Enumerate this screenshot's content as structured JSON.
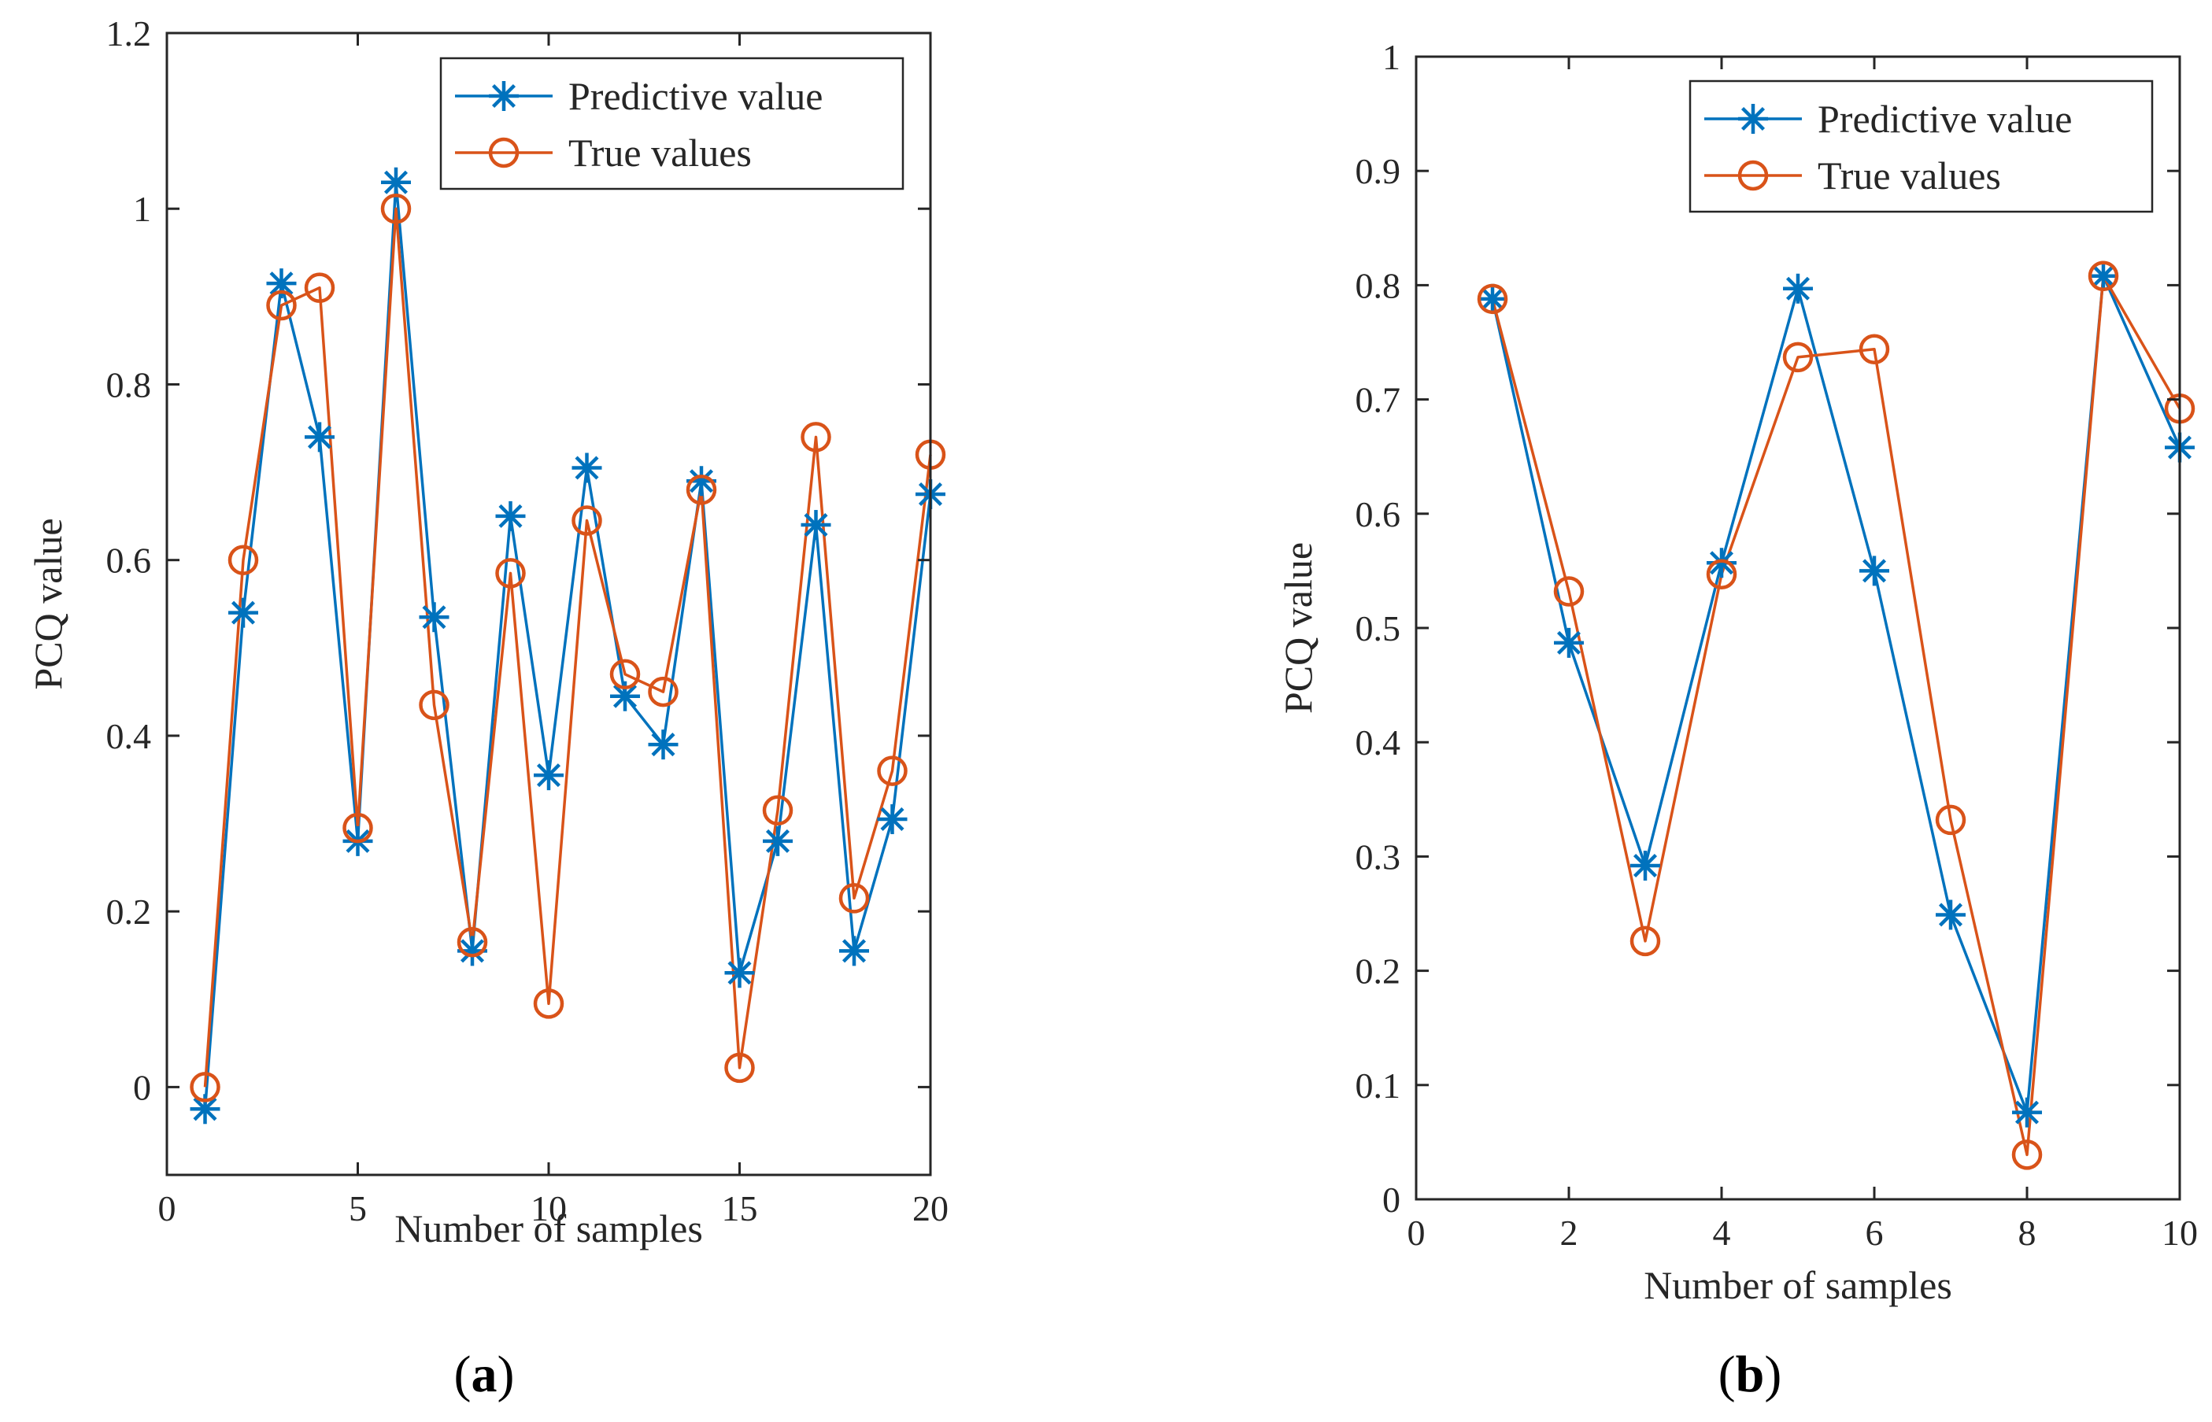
{
  "figure": {
    "captions": [
      {
        "open": "(",
        "letter": "a",
        "close": ")"
      },
      {
        "open": "(",
        "letter": "b",
        "close": ")"
      }
    ]
  },
  "chart_data": [
    {
      "type": "line",
      "panel": "a",
      "xlabel": "Number of samples",
      "ylabel": "PCQ value",
      "xlim": [
        0,
        20
      ],
      "ylim": [
        -0.1,
        1.2
      ],
      "xticks": [
        0,
        5,
        10,
        15,
        20
      ],
      "xtick_labels": [
        "0",
        "5",
        "10",
        "15",
        "20"
      ],
      "yticks": [
        0,
        0.2,
        0.4,
        0.6,
        0.8,
        1,
        1.2
      ],
      "ytick_labels": [
        "0",
        "0.2",
        "0.4",
        "0.6",
        "0.8",
        "1",
        "1.2"
      ],
      "grid": false,
      "legend_position": "top-right",
      "x": [
        1,
        2,
        3,
        4,
        5,
        6,
        7,
        8,
        9,
        10,
        11,
        12,
        13,
        14,
        15,
        16,
        17,
        18,
        19,
        20
      ],
      "series": [
        {
          "name": "Predictive value",
          "marker": "asterisk",
          "color": "#0072BD",
          "values": [
            -0.025,
            0.54,
            0.915,
            0.74,
            0.28,
            1.03,
            0.535,
            0.155,
            0.65,
            0.355,
            0.705,
            0.445,
            0.39,
            0.69,
            0.13,
            0.28,
            0.64,
            0.155,
            0.305,
            0.675
          ]
        },
        {
          "name": "True values",
          "marker": "circle",
          "color": "#D95319",
          "values": [
            0.0,
            0.6,
            0.89,
            0.91,
            0.295,
            1.0,
            0.435,
            0.165,
            0.585,
            0.095,
            0.645,
            0.47,
            0.45,
            0.68,
            0.022,
            0.315,
            0.74,
            0.215,
            0.36,
            0.72
          ]
        }
      ]
    },
    {
      "type": "line",
      "panel": "b",
      "xlabel": "Number of samples",
      "ylabel": "PCQ value",
      "xlim": [
        0,
        10
      ],
      "ylim": [
        0,
        1
      ],
      "xticks": [
        0,
        2,
        4,
        6,
        8,
        10
      ],
      "xtick_labels": [
        "0",
        "2",
        "4",
        "6",
        "8",
        "10"
      ],
      "yticks": [
        0,
        0.1,
        0.2,
        0.3,
        0.4,
        0.5,
        0.6,
        0.7,
        0.8,
        0.9,
        1
      ],
      "ytick_labels": [
        "0",
        "0.1",
        "0.2",
        "0.3",
        "0.4",
        "0.5",
        "0.6",
        "0.7",
        "0.8",
        "0.9",
        "1"
      ],
      "grid": false,
      "legend_position": "top-right",
      "x": [
        1,
        2,
        3,
        4,
        5,
        6,
        7,
        8,
        9,
        10
      ],
      "series": [
        {
          "name": "Predictive value",
          "marker": "asterisk",
          "color": "#0072BD",
          "values": [
            0.788,
            0.487,
            0.292,
            0.557,
            0.797,
            0.55,
            0.249,
            0.076,
            0.808,
            0.658
          ]
        },
        {
          "name": "True values",
          "marker": "circle",
          "color": "#D95319",
          "values": [
            0.788,
            0.532,
            0.226,
            0.547,
            0.737,
            0.744,
            0.332,
            0.039,
            0.808,
            0.692
          ]
        }
      ]
    }
  ]
}
